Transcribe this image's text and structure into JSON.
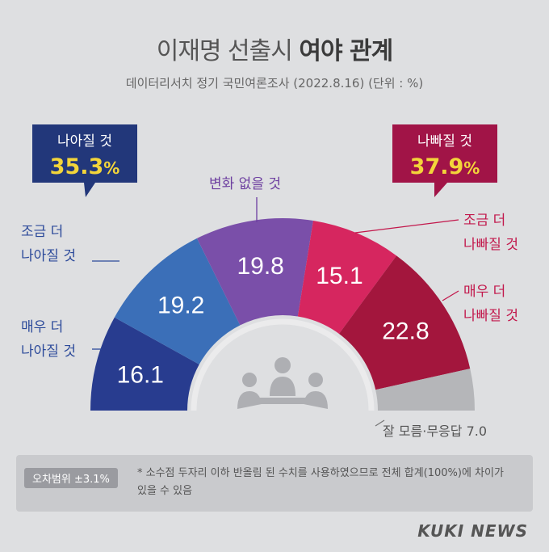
{
  "header": {
    "title_part1": "이재명 선출시 ",
    "title_part2": "여야 관계",
    "subtitle": "데이터리서치 정기 국민여론조사 (2022.8.16) (단위 : %)"
  },
  "chart_data": {
    "type": "pie",
    "title": "이재명 선출시 여야 관계",
    "subtitle": "데이터리서치 정기 국민여론조사 (2022.8.16) (단위 : %)",
    "categories": [
      "매우 더 나아질 것",
      "조금 더 나아질 것",
      "변화 없을 것",
      "조금 더 나빠질 것",
      "매우 더 나빠질 것",
      "잘 모름·무응답"
    ],
    "values": [
      16.1,
      19.2,
      19.8,
      15.1,
      22.8,
      7.0
    ],
    "value_labels": [
      "16.1",
      "19.2",
      "19.8",
      "15.1",
      "22.8",
      "7.0"
    ],
    "colors": [
      "#283c8f",
      "#3b6fb8",
      "#7a4fa9",
      "#d6265f",
      "#a3163d",
      "#b5b6b9"
    ],
    "layout": "semicircle donut",
    "groups": [
      {
        "label": "나아질 것",
        "value": "35.3",
        "unit": "%",
        "color": "#22377a"
      },
      {
        "label": "나빠질 것",
        "value": "37.9",
        "unit": "%",
        "color": "#a11447"
      }
    ]
  },
  "labels": {
    "much_better_l1": "매우 더",
    "much_better_l2": "나아질 것",
    "slightly_better_l1": "조금 더",
    "slightly_better_l2": "나아질 것",
    "no_change": "변화 없을 것",
    "slightly_worse_l1": "조금 더",
    "slightly_worse_l2": "나빠질 것",
    "much_worse_l1": "매우 더",
    "much_worse_l2": "나빠질 것",
    "unknown": "잘 모름·무응답 7.0"
  },
  "footer": {
    "margin_of_error": "오차범위 ±3.1%",
    "note_line1": "* 소수점 두자리 이하 반올림 된 수치를 사용하였으므로 전체 합계(100%)에 차이가",
    "note_line2": "있을 수 있음",
    "brand": "KUKI NEWS"
  },
  "colors": {
    "better_text": "#2c4a9a",
    "worse_text": "#c2174b",
    "neutral_text": "#6d3fa0",
    "highlight": "#f3d53a"
  }
}
